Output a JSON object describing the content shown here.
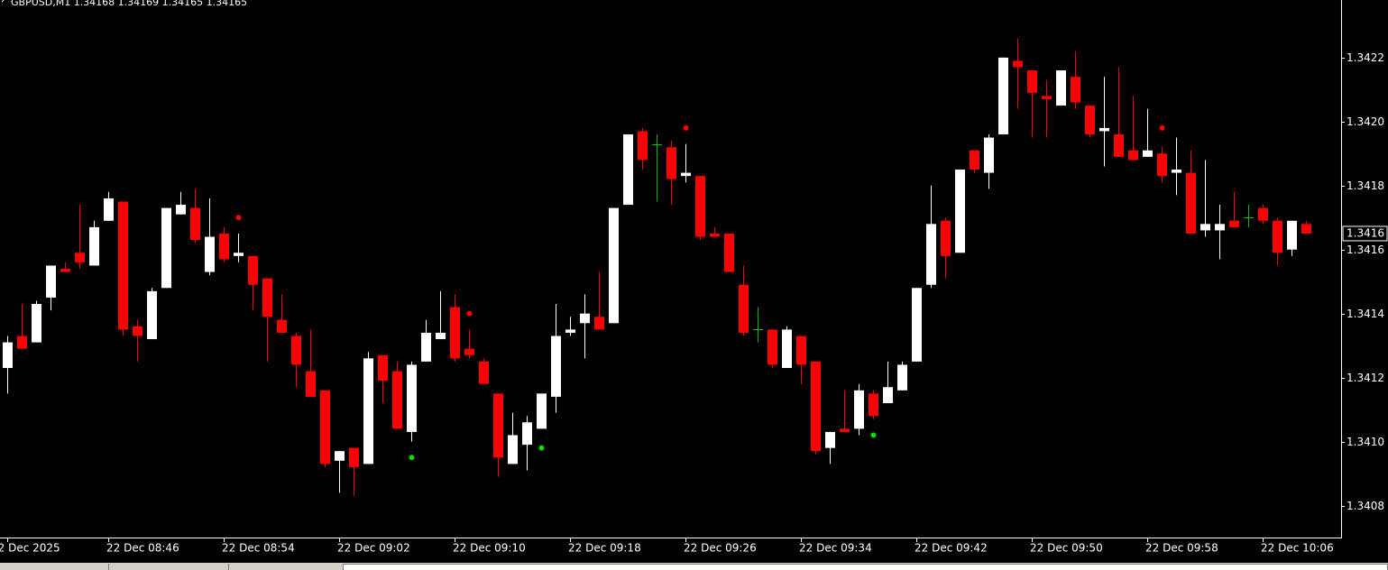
{
  "chart_data": {
    "type": "candlestick",
    "title": "GBPUSD,M1  1.34168 1.34169 1.34165 1.34165",
    "categories": [
      "22 Dec 2025",
      null,
      null,
      null,
      null,
      null,
      null,
      "22 Dec 08:46",
      null,
      null,
      null,
      null,
      null,
      null,
      null,
      "22 Dec 08:54",
      null,
      null,
      null,
      null,
      null,
      null,
      null,
      "22 Dec 09:02",
      null,
      null,
      null,
      null,
      null,
      null,
      null,
      "22 Dec 09:10",
      null,
      null,
      null,
      null,
      null,
      null,
      null,
      "22 Dec 09:18",
      null,
      null,
      null,
      null,
      null,
      null,
      null,
      "22 Dec 09:26",
      null,
      null,
      null,
      null,
      null,
      null,
      null,
      "22 Dec 09:34",
      null,
      null,
      null,
      null,
      null,
      null,
      null,
      "22 Dec 09:42",
      null,
      null,
      null,
      null,
      null,
      null,
      null,
      "22 Dec 09:50",
      null,
      null,
      null,
      null,
      null,
      null,
      null,
      "22 Dec 09:58",
      null,
      null,
      null,
      null,
      null,
      null,
      null,
      "22 Dec 10:06",
      null,
      null,
      null
    ],
    "open": [
      1.34123,
      1.34133,
      1.34131,
      1.34145,
      1.34154,
      1.34159,
      1.34155,
      1.34169,
      1.34175,
      1.34136,
      1.34132,
      1.34148,
      1.34171,
      1.34173,
      1.34153,
      1.34165,
      1.34158,
      1.34158,
      1.34151,
      1.34138,
      1.34133,
      1.34122,
      1.34116,
      1.34094,
      1.34098,
      1.34093,
      1.34127,
      1.34122,
      1.34103,
      1.34125,
      1.34132,
      1.34142,
      1.34129,
      1.34125,
      1.34115,
      1.34093,
      1.34099,
      1.34104,
      1.34114,
      1.34134,
      1.34137,
      1.34139,
      1.34137,
      1.34174,
      1.34197,
      1.34193,
      1.34192,
      1.34183,
      1.34183,
      1.34165,
      1.34165,
      1.34149,
      1.34135,
      1.34135,
      1.34123,
      1.34133,
      1.34125,
      1.34098,
      1.34104,
      1.34104,
      1.34115,
      1.34112,
      1.34116,
      1.34125,
      1.34149,
      1.34169,
      1.34159,
      1.34191,
      1.34184,
      1.34196,
      1.34219,
      1.34216,
      1.34208,
      1.34205,
      1.34214,
      1.34205,
      1.34197,
      1.34196,
      1.34191,
      1.34189,
      1.3419,
      1.34184,
      1.34184,
      1.34166,
      1.34166,
      1.34169,
      1.3417,
      1.34173,
      1.34169,
      1.3416,
      1.34168
    ],
    "high": [
      1.34133,
      1.34143,
      1.34144,
      1.34155,
      1.34156,
      1.34174,
      1.34169,
      1.34178,
      1.34175,
      1.34138,
      1.34148,
      1.34173,
      1.34178,
      1.34179,
      1.34176,
      1.34167,
      1.34165,
      1.34158,
      1.34151,
      1.34146,
      1.34134,
      1.34135,
      1.34116,
      1.34097,
      1.34098,
      1.34128,
      1.34127,
      1.34125,
      1.34125,
      1.34138,
      1.34147,
      1.34146,
      1.34135,
      1.34126,
      1.34115,
      1.34109,
      1.34108,
      1.34115,
      1.34143,
      1.34139,
      1.34146,
      1.34153,
      1.34173,
      1.34196,
      1.34198,
      1.34196,
      1.34194,
      1.34193,
      1.34183,
      1.34167,
      1.34165,
      1.34155,
      1.34142,
      1.34135,
      1.34136,
      1.34133,
      1.34125,
      1.34103,
      1.34116,
      1.34118,
      1.34116,
      1.34125,
      1.34125,
      1.34148,
      1.3418,
      1.3417,
      1.34185,
      1.34191,
      1.34196,
      1.3422,
      1.34226,
      1.34216,
      1.34213,
      1.34216,
      1.34222,
      1.34205,
      1.34214,
      1.34217,
      1.34208,
      1.34204,
      1.34192,
      1.34195,
      1.34191,
      1.34188,
      1.34174,
      1.34178,
      1.34174,
      1.34174,
      1.3417,
      1.34169,
      1.34169
    ],
    "low": [
      1.34115,
      1.34129,
      1.34131,
      1.34141,
      1.34153,
      1.34154,
      1.34155,
      1.34169,
      1.34133,
      1.34125,
      1.34132,
      1.34148,
      1.34171,
      1.34162,
      1.34152,
      1.34156,
      1.34156,
      1.34141,
      1.34125,
      1.34134,
      1.34117,
      1.34114,
      1.34092,
      1.34084,
      1.34083,
      1.34093,
      1.34112,
      1.34104,
      1.341,
      1.34125,
      1.34132,
      1.34125,
      1.34126,
      1.34118,
      1.34089,
      1.34093,
      1.34091,
      1.34104,
      1.34109,
      1.34133,
      1.34126,
      1.34135,
      1.34137,
      1.34174,
      1.34185,
      1.34175,
      1.34174,
      1.34181,
      1.34163,
      1.34164,
      1.34153,
      1.34133,
      1.34131,
      1.34123,
      1.34123,
      1.34118,
      1.34096,
      1.34093,
      1.34103,
      1.34102,
      1.34107,
      1.34112,
      1.34116,
      1.34125,
      1.34148,
      1.34151,
      1.34159,
      1.34184,
      1.34179,
      1.34196,
      1.34204,
      1.34195,
      1.34195,
      1.34205,
      1.34204,
      1.34195,
      1.34186,
      1.34189,
      1.34188,
      1.34189,
      1.34181,
      1.34177,
      1.34165,
      1.34164,
      1.34157,
      1.34167,
      1.34167,
      1.34168,
      1.34155,
      1.34158,
      1.34165
    ],
    "close": [
      1.34131,
      1.34129,
      1.34143,
      1.34155,
      1.34153,
      1.34156,
      1.34167,
      1.34176,
      1.34135,
      1.34133,
      1.34147,
      1.34173,
      1.34174,
      1.34163,
      1.34164,
      1.34157,
      1.34159,
      1.34149,
      1.34139,
      1.34134,
      1.34124,
      1.34114,
      1.34093,
      1.34097,
      1.34092,
      1.34126,
      1.34119,
      1.34104,
      1.34124,
      1.34134,
      1.34134,
      1.34126,
      1.34127,
      1.34118,
      1.34095,
      1.34102,
      1.34106,
      1.34115,
      1.34133,
      1.34135,
      1.3414,
      1.34135,
      1.34173,
      1.34196,
      1.34188,
      1.34193,
      1.34182,
      1.34184,
      1.34164,
      1.34164,
      1.34153,
      1.34134,
      1.34135,
      1.34124,
      1.34135,
      1.34124,
      1.34097,
      1.34103,
      1.34103,
      1.34116,
      1.34108,
      1.34117,
      1.34124,
      1.34148,
      1.34168,
      1.34158,
      1.34185,
      1.34185,
      1.34195,
      1.3422,
      1.34217,
      1.34209,
      1.34207,
      1.34216,
      1.34206,
      1.34196,
      1.34198,
      1.34189,
      1.34188,
      1.34191,
      1.34183,
      1.34185,
      1.34165,
      1.34168,
      1.34168,
      1.34167,
      1.3417,
      1.34169,
      1.34159,
      1.34169,
      1.34165
    ],
    "up_color": "#ffffff",
    "down_color": "#ff0000",
    "doji_color": "#00c000",
    "signals": [
      {
        "index": 16,
        "value": 1.3417,
        "color": "#ff0000"
      },
      {
        "index": 32,
        "value": 1.3414,
        "color": "#ff0000"
      },
      {
        "index": 47,
        "value": 1.34198,
        "color": "#ff0000"
      },
      {
        "index": 80,
        "value": 1.34198,
        "color": "#ff0000"
      },
      {
        "index": 28,
        "value": 1.34095,
        "color": "#00e000"
      },
      {
        "index": 37,
        "value": 1.34098,
        "color": "#00e000"
      },
      {
        "index": 60,
        "value": 1.34102,
        "color": "#00e000"
      }
    ],
    "ylim": [
      1.3407,
      1.34238
    ],
    "yticks": [
      1.3408,
      {
        "value": 1.341,
        "label": "1.3410"
      },
      1.3412,
      1.3414,
      1.3416,
      1.3418,
      {
        "value": 1.342,
        "label": "1.3420"
      },
      1.3422
    ],
    "current_price": {
      "value": 1.34165,
      "label": "1.3416"
    }
  }
}
